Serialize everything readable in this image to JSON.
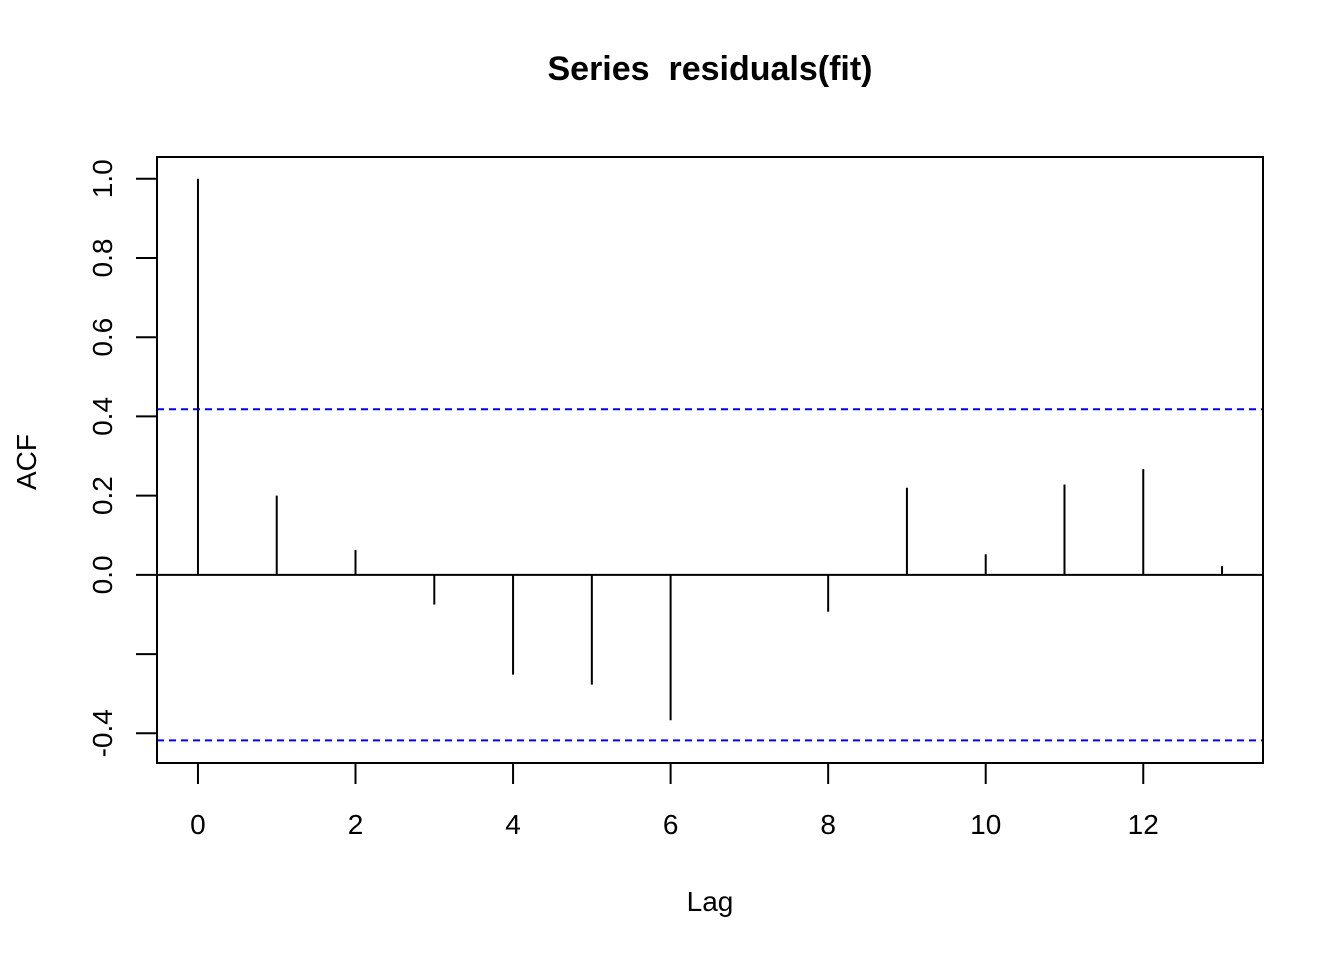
{
  "chart_data": {
    "type": "bar",
    "title": "Series  residuals(fit)",
    "xlabel": "Lag",
    "ylabel": "ACF",
    "xlim": [
      -0.52,
      13.52
    ],
    "ylim": [
      -0.475,
      1.055
    ],
    "x_ticks": [
      0,
      2,
      4,
      6,
      8,
      10,
      12
    ],
    "x_tick_labels": [
      "0",
      "2",
      "4",
      "6",
      "8",
      "10",
      "12"
    ],
    "y_ticks": [
      -0.4,
      -0.2,
      0.0,
      0.2,
      0.4,
      0.6,
      0.8,
      1.0
    ],
    "y_tick_labels": [
      "-0.4",
      "",
      "0.0",
      "0.2",
      "0.4",
      "0.6",
      "0.8",
      "1.0"
    ],
    "lags": [
      0,
      1,
      2,
      3,
      4,
      5,
      6,
      7,
      8,
      9,
      10,
      11,
      12,
      13
    ],
    "values": [
      1.0,
      0.2,
      0.063,
      -0.075,
      -0.252,
      -0.277,
      -0.367,
      0.0,
      -0.093,
      0.22,
      0.052,
      0.228,
      0.267,
      0.022
    ],
    "confidence_bound": 0.418,
    "confidence_color": "#0000ff",
    "bar_color": "#000000",
    "grid": false,
    "legend": "none"
  }
}
